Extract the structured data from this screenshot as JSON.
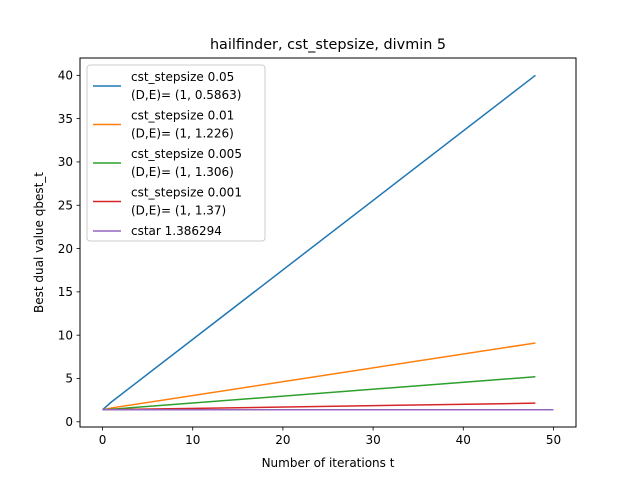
{
  "chart_data": {
    "type": "line",
    "title": "hailfinder, cst_stepsize, divmin 5",
    "xlabel": "Number of iterations t",
    "ylabel": "Best dual value qbest_t",
    "xlim": [
      -2.5,
      52.5
    ],
    "ylim": [
      -0.6,
      42
    ],
    "xticks": [
      0,
      10,
      20,
      30,
      40,
      50
    ],
    "yticks": [
      0,
      5,
      10,
      15,
      20,
      25,
      30,
      35,
      40
    ],
    "xtick_labels": [
      "0",
      "10",
      "20",
      "30",
      "40",
      "50"
    ],
    "ytick_labels": [
      "0",
      "5",
      "10",
      "15",
      "20",
      "25",
      "30",
      "35",
      "40"
    ],
    "grid": false,
    "legend_position": "top-left",
    "series": [
      {
        "name_line1": "cst_stepsize 0.05",
        "name_line2": "(D,E)= (1, 0.5863)",
        "color": "#1f77b4",
        "x": [
          0,
          1,
          48
        ],
        "y": [
          1.386,
          2.3,
          40.0
        ]
      },
      {
        "name_line1": "cst_stepsize 0.01",
        "name_line2": "(D,E)= (1, 1.226)",
        "color": "#ff7f0e",
        "x": [
          0,
          1,
          48
        ],
        "y": [
          1.386,
          1.6,
          9.1
        ]
      },
      {
        "name_line1": "cst_stepsize 0.005",
        "name_line2": "(D,E)= (1, 1.306)",
        "color": "#2ca02c",
        "x": [
          0,
          1,
          48
        ],
        "y": [
          1.386,
          1.45,
          5.2
        ]
      },
      {
        "name_line1": "cst_stepsize 0.001",
        "name_line2": "(D,E)= (1, 1.37)",
        "color": "#d62728",
        "x": [
          0,
          48
        ],
        "y": [
          1.386,
          2.15
        ]
      },
      {
        "name_line1": "cstar 1.386294",
        "name_line2": "",
        "color": "#9467bd",
        "x": [
          0,
          50
        ],
        "y": [
          1.386294,
          1.386294
        ]
      }
    ]
  }
}
